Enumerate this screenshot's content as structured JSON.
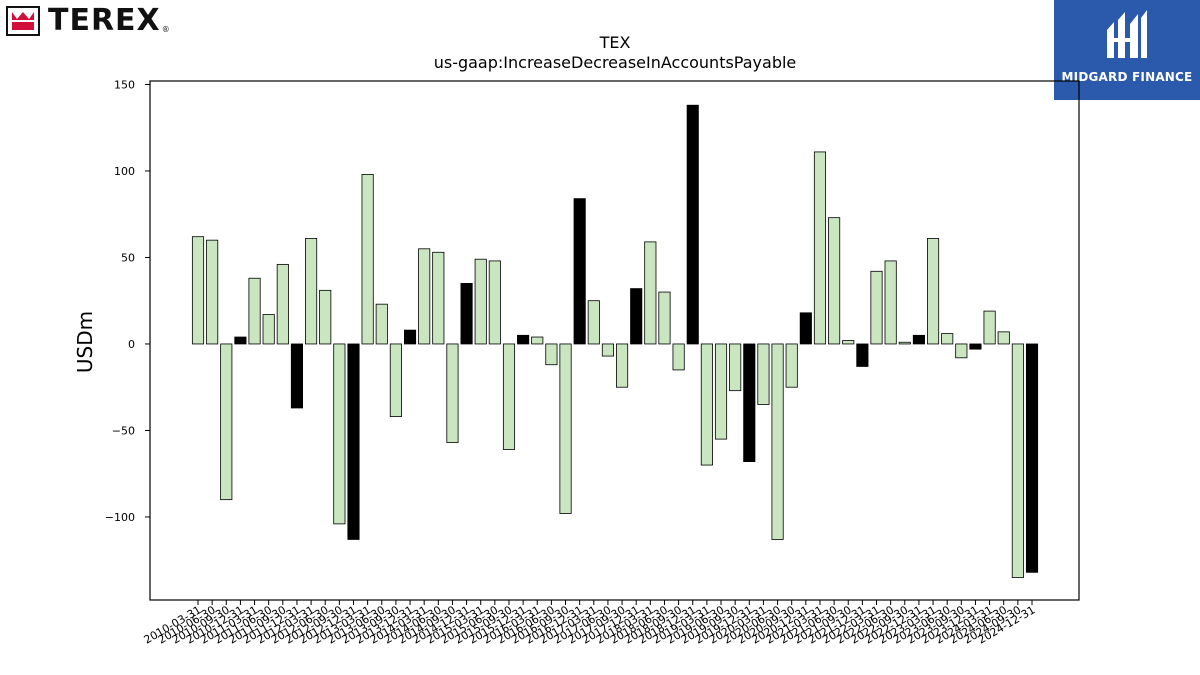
{
  "brand_left": {
    "name": "TEREX",
    "reg_mark": "®",
    "accent_color": "#d0103a"
  },
  "brand_right": {
    "name": "MIDGARD FINANCE",
    "bg_color": "#2b5aac"
  },
  "chart_data": {
    "type": "bar",
    "title": "TEX",
    "subtitle": "us-gaap:IncreaseDecreaseInAccountsPayable",
    "xlabel": "",
    "ylabel": "USDm",
    "ylim": [
      -148,
      152
    ],
    "yticks": [
      150,
      100,
      50,
      0,
      -50,
      -100
    ],
    "ytick_labels": [
      "150",
      "100",
      "50",
      "0",
      "−50",
      "−100"
    ],
    "grid": false,
    "colors": {
      "q123": "#c9e6c1",
      "q4": "#000000"
    },
    "categories": [
      "2010-03-31",
      "2010-06-30",
      "2010-09-30",
      "2010-12-31",
      "2011-03-31",
      "2011-06-30",
      "2011-09-30",
      "2011-12-31",
      "2012-03-31",
      "2012-06-30",
      "2012-09-30",
      "2012-12-31",
      "2013-03-31",
      "2013-06-30",
      "2013-09-30",
      "2013-12-31",
      "2014-03-31",
      "2014-06-30",
      "2014-09-30",
      "2014-12-31",
      "2015-03-31",
      "2015-06-30",
      "2015-09-30",
      "2015-12-31",
      "2016-03-31",
      "2016-06-30",
      "2016-09-30",
      "2016-12-31",
      "2017-03-31",
      "2017-06-30",
      "2017-09-30",
      "2017-12-31",
      "2018-03-31",
      "2018-06-30",
      "2018-09-30",
      "2018-12-31",
      "2019-03-31",
      "2019-06-30",
      "2019-09-30",
      "2019-12-31",
      "2020-03-31",
      "2020-06-30",
      "2020-09-30",
      "2020-12-31",
      "2021-03-31",
      "2021-06-30",
      "2021-09-30",
      "2021-12-31",
      "2022-03-31",
      "2022-06-30",
      "2022-09-30",
      "2022-12-31",
      "2023-03-31",
      "2023-06-30",
      "2023-09-30",
      "2023-12-31",
      "2024-03-31",
      "2024-06-30",
      "2024-09-30",
      "2024-12-31"
    ],
    "values": [
      62,
      60,
      -90,
      4,
      38,
      17,
      46,
      -37,
      61,
      31,
      -104,
      -113,
      98,
      23,
      -42,
      8,
      55,
      53,
      -57,
      35,
      49,
      48,
      -61,
      5,
      4,
      -12,
      -98,
      84,
      25,
      -7,
      -25,
      32,
      59,
      30,
      -15,
      138,
      -70,
      -55,
      -27,
      -68,
      -35,
      -113,
      -25,
      18,
      111,
      73,
      2,
      -13,
      42,
      48,
      1,
      5,
      61,
      6,
      -8,
      -3,
      19,
      7,
      -135,
      -132
    ]
  }
}
